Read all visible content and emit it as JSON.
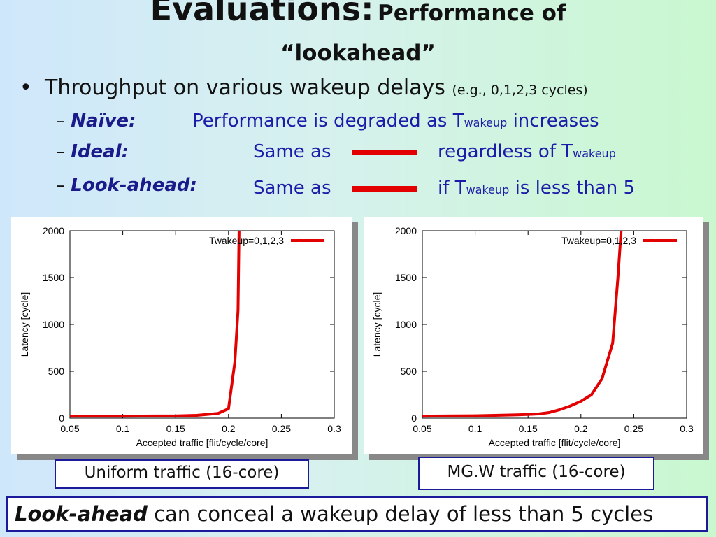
{
  "slide": {
    "title_main": "Evaluations:",
    "title_sub": "Performance of",
    "title_line2": "“lookahead”",
    "bullet": {
      "text": "Throughput on various wakeup delays",
      "note": "(e.g., 0,1,2,3 cycles)"
    },
    "subitems": [
      {
        "label": "Naïve:",
        "t_pre": "Performance is degraded as T",
        "t_sub": "wakeup",
        "t_post": " increases"
      },
      {
        "label": "Ideal:",
        "same_as": "Same as",
        "t_pre": "regardless of T",
        "t_sub": "wakeup",
        "t_post": ""
      },
      {
        "label": "Look-ahead:",
        "same_as": "Same as",
        "t_pre": "if T",
        "t_sub": "wakeup",
        "t_post": " is less than 5"
      }
    ],
    "dash": "–",
    "bullet_char": "•",
    "captions": [
      "Uniform traffic (16-core)",
      "MG.W traffic (16-core)"
    ],
    "conclusion": {
      "em": "Look-ahead",
      "rest": " can conceal a wakeup delay of less than 5 cycles"
    },
    "accent_color": "#e20000",
    "label_color": "#1a1a8a"
  },
  "chart_data": [
    {
      "type": "line",
      "xlabel": "Accepted traffic [flit/cycle/core]",
      "ylabel": "Latency [cycle]",
      "xlim": [
        0.05,
        0.3
      ],
      "ylim": [
        0,
        2000
      ],
      "xticks": [
        "0.05",
        "0.1",
        "0.15",
        "0.2",
        "0.25",
        "0.3"
      ],
      "yticks": [
        "0",
        "500",
        "1000",
        "1500",
        "2000"
      ],
      "legend_position": "top-right",
      "series": [
        {
          "name": "Twakeup=0,1,2,3",
          "color": "#e20000",
          "x": [
            0.05,
            0.1,
            0.15,
            0.17,
            0.19,
            0.2,
            0.206,
            0.209,
            0.21
          ],
          "y": [
            22,
            22,
            24,
            30,
            50,
            100,
            600,
            1150,
            2000
          ]
        }
      ]
    },
    {
      "type": "line",
      "xlabel": "Accepted traffic [flit/cycle/core]",
      "ylabel": "Latency [cycle]",
      "xlim": [
        0.05,
        0.3
      ],
      "ylim": [
        0,
        2000
      ],
      "xticks": [
        "0.05",
        "0.1",
        "0.15",
        "0.2",
        "0.25",
        "0.3"
      ],
      "yticks": [
        "0",
        "500",
        "1000",
        "1500",
        "2000"
      ],
      "legend_position": "top-right",
      "series": [
        {
          "name": "Twakeup=0,1,2,3",
          "color": "#e20000",
          "x": [
            0.05,
            0.1,
            0.14,
            0.16,
            0.17,
            0.18,
            0.19,
            0.2,
            0.21,
            0.22,
            0.23,
            0.235,
            0.238
          ],
          "y": [
            22,
            25,
            35,
            45,
            60,
            90,
            130,
            180,
            250,
            420,
            800,
            1500,
            2000
          ]
        }
      ]
    }
  ]
}
